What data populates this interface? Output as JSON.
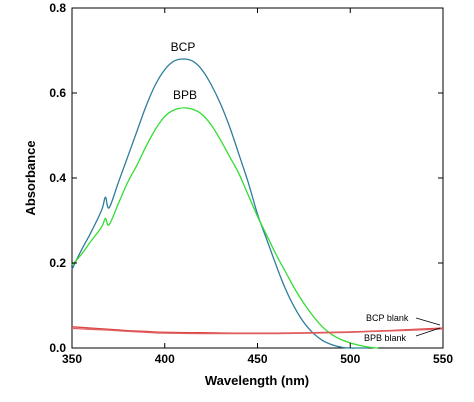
{
  "chart_data": {
    "type": "line",
    "xlabel": "Wavelength (nm)",
    "ylabel": "Absorbance",
    "xlim": [
      350,
      550
    ],
    "ylim": [
      0,
      0.8
    ],
    "xticks": [
      350,
      400,
      450,
      500,
      550
    ],
    "yticks": [
      0.0,
      0.2,
      0.4,
      0.6,
      0.8
    ],
    "ytick_labels": [
      "0.0",
      "0.2",
      "0.4",
      "0.6",
      "0.8"
    ],
    "grid": false,
    "series": [
      {
        "name": "BCP",
        "color": "#2e7d9a",
        "x": [
          350,
          355,
          360,
          366,
          368,
          370,
          375,
          380,
          385,
          390,
          395,
          400,
          405,
          410,
          415,
          420,
          425,
          430,
          435,
          440,
          445,
          450,
          455,
          460,
          465,
          470,
          475,
          480,
          485,
          490,
          495,
          500,
          505,
          510
        ],
        "values": [
          0.185,
          0.23,
          0.27,
          0.325,
          0.355,
          0.33,
          0.39,
          0.45,
          0.51,
          0.57,
          0.62,
          0.655,
          0.675,
          0.68,
          0.675,
          0.655,
          0.62,
          0.575,
          0.52,
          0.455,
          0.39,
          0.315,
          0.255,
          0.195,
          0.14,
          0.095,
          0.06,
          0.035,
          0.018,
          0.008,
          0.002,
          0.0,
          0.0,
          0.0
        ]
      },
      {
        "name": "BPB",
        "color": "#33dd33",
        "x": [
          350,
          355,
          360,
          366,
          368,
          370,
          375,
          380,
          385,
          390,
          395,
          400,
          405,
          410,
          415,
          420,
          425,
          430,
          435,
          440,
          445,
          450,
          455,
          460,
          465,
          470,
          475,
          480,
          485,
          490,
          495,
          500,
          505,
          510,
          515
        ],
        "values": [
          0.195,
          0.22,
          0.25,
          0.285,
          0.305,
          0.29,
          0.34,
          0.39,
          0.43,
          0.475,
          0.515,
          0.545,
          0.56,
          0.565,
          0.562,
          0.55,
          0.525,
          0.49,
          0.45,
          0.41,
          0.36,
          0.31,
          0.265,
          0.22,
          0.18,
          0.14,
          0.105,
          0.075,
          0.05,
          0.032,
          0.02,
          0.012,
          0.006,
          0.002,
          0.0
        ]
      },
      {
        "name": "BCP blank",
        "color": "#dd4444",
        "x": [
          350,
          360,
          370,
          380,
          390,
          400,
          420,
          440,
          460,
          480,
          500,
          520,
          540,
          550
        ],
        "values": [
          0.05,
          0.047,
          0.044,
          0.041,
          0.039,
          0.037,
          0.036,
          0.035,
          0.035,
          0.036,
          0.038,
          0.041,
          0.045,
          0.047
        ]
      },
      {
        "name": "BPB blank",
        "color": "#e06060",
        "x": [
          350,
          360,
          370,
          380,
          390,
          400,
          420,
          440,
          460,
          480,
          500,
          520,
          540,
          550
        ],
        "values": [
          0.046,
          0.044,
          0.042,
          0.039,
          0.037,
          0.035,
          0.034,
          0.034,
          0.034,
          0.035,
          0.037,
          0.04,
          0.043,
          0.045
        ]
      }
    ],
    "annotations": [
      "BCP",
      "BPB",
      "BCP blank",
      "BPB blank"
    ]
  }
}
